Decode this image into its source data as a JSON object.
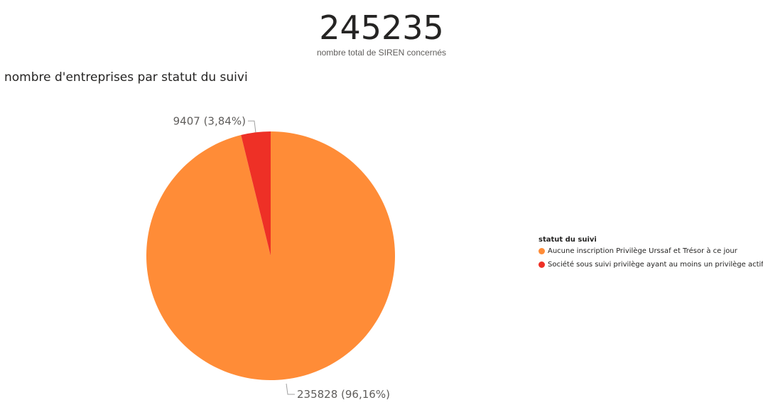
{
  "kpi": {
    "value": "245235",
    "label": "nombre total de SIREN concernés"
  },
  "chart_data": {
    "type": "pie",
    "title": "nombre d'entreprises par statut du suivi",
    "legend_title": "statut du suivi",
    "legend_position": "right",
    "slices": [
      {
        "name": "Aucune inscription Privilège Urssaf et Trésor à ce jour",
        "value": 235828,
        "label": "235828 (96,16%)",
        "color": "#FF8C37"
      },
      {
        "name": "Société sous suivi privilège ayant au moins un privilège actif",
        "value": 9407,
        "label": "9407 (3,84%)",
        "color": "#EE3026"
      }
    ]
  }
}
